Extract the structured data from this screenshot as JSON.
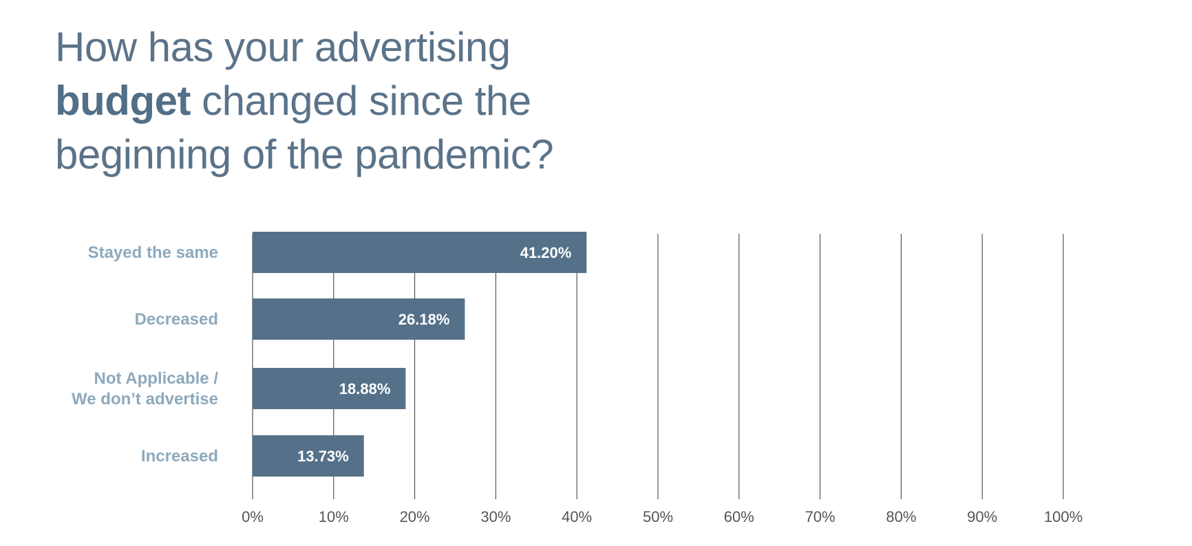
{
  "title": {
    "line1": "How has your advertising",
    "line2_bold": "budget",
    "line2_rest": " changed since the",
    "line3": "beginning of the pandemic?"
  },
  "chart_data": {
    "type": "bar",
    "orientation": "horizontal",
    "title": "How has your advertising budget changed since the beginning of the pandemic?",
    "categories": [
      [
        "Stayed the same"
      ],
      [
        "Decreased"
      ],
      [
        "Not Applicable /",
        "We don’t advertise"
      ],
      [
        "Increased"
      ]
    ],
    "values": [
      41.2,
      26.18,
      18.88,
      13.73
    ],
    "value_labels": [
      "41.20%",
      "26.18%",
      "18.88%",
      "13.73%"
    ],
    "xlim": [
      0,
      100
    ],
    "x_ticks": [
      0,
      10,
      20,
      30,
      40,
      50,
      60,
      70,
      80,
      90,
      100
    ],
    "x_tick_labels": [
      "0%",
      "10%",
      "20%",
      "30%",
      "40%",
      "50%",
      "60%",
      "70%",
      "80%",
      "90%",
      "100%"
    ],
    "grid": "vertical",
    "bar_color": "#557189",
    "label_color": "#8da9bd",
    "value_label_color": "#ffffff"
  }
}
